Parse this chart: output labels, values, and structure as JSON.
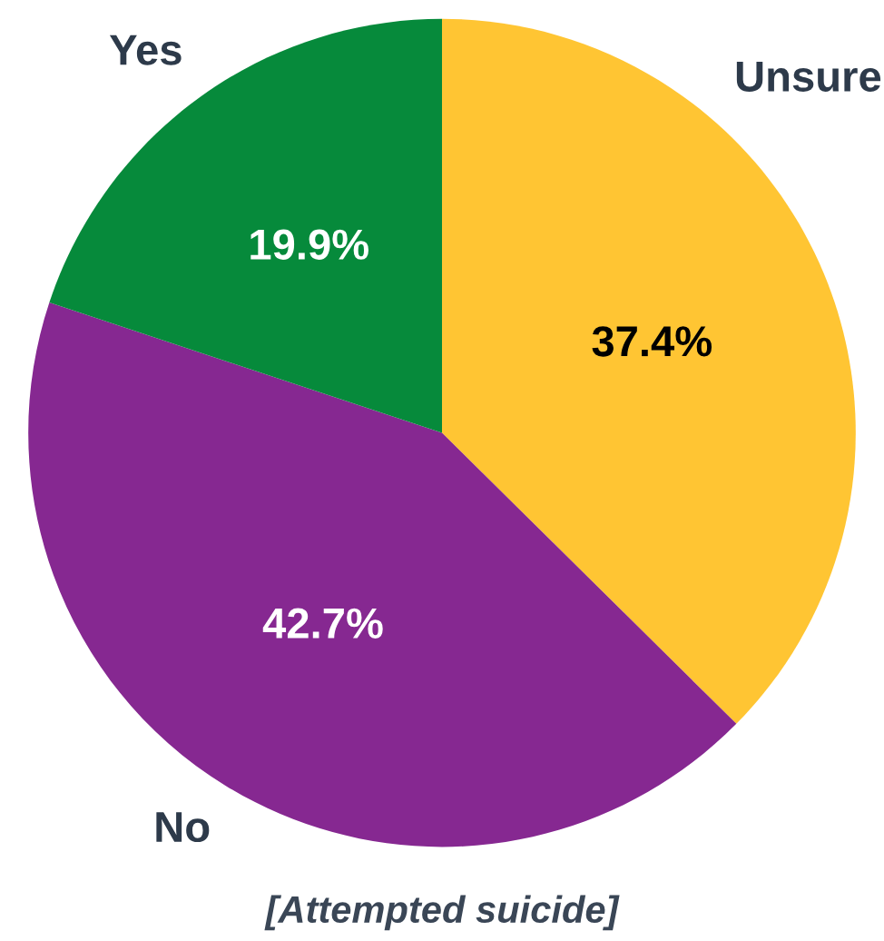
{
  "chart_data": {
    "type": "pie",
    "title": "[Attempted suicide]",
    "categories": [
      "Unsure",
      "No",
      "Yes"
    ],
    "values": [
      37.4,
      42.7,
      19.9
    ],
    "colors": [
      "#ffc533",
      "#862891",
      "#068a3b"
    ],
    "value_labels": [
      "37.4%",
      "42.7%",
      "19.9%"
    ],
    "legend": false
  }
}
